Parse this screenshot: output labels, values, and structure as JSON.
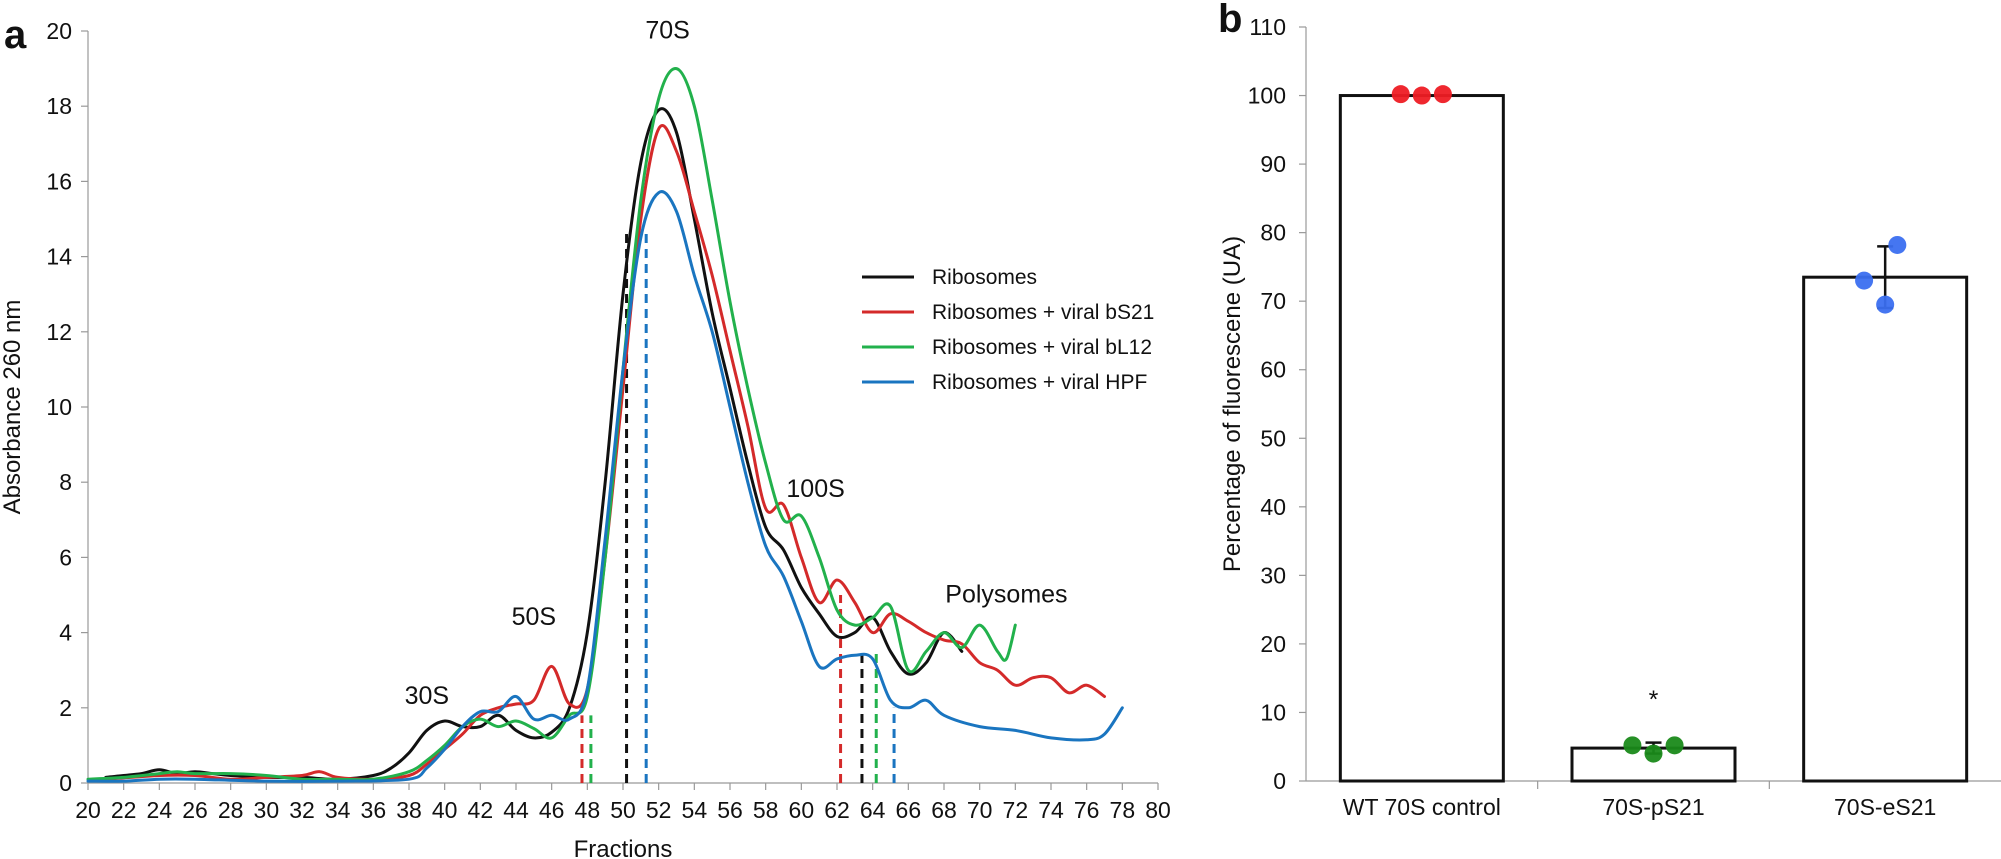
{
  "chart_data": [
    {
      "panel": "a",
      "type": "line",
      "title": "",
      "xlabel": "Fractions",
      "ylabel": "Absorbance 260 nm",
      "xlim": [
        20,
        80
      ],
      "ylim": [
        0,
        20
      ],
      "xticks": [
        20,
        22,
        24,
        26,
        28,
        30,
        32,
        34,
        36,
        38,
        40,
        42,
        44,
        46,
        48,
        50,
        52,
        54,
        56,
        58,
        60,
        62,
        64,
        66,
        68,
        70,
        72,
        74,
        76,
        78,
        80
      ],
      "yticks": [
        0,
        2,
        4,
        6,
        8,
        10,
        12,
        14,
        16,
        18,
        20
      ],
      "grid": false,
      "legend_position": "middle-right",
      "annotations": [
        {
          "text": "70S",
          "x": 52.5,
          "y": 19.8
        },
        {
          "text": "30S",
          "x": 39.0,
          "y": 2.1
        },
        {
          "text": "50S",
          "x": 45.0,
          "y": 4.2
        },
        {
          "text": "100S",
          "x": 60.8,
          "y": 7.6
        },
        {
          "text": "Polysomes",
          "x": 71.5,
          "y": 4.8
        }
      ],
      "series": [
        {
          "name": "Ribosomes",
          "color": "#111111",
          "points": [
            [
              21,
              0.15
            ],
            [
              22,
              0.2
            ],
            [
              23,
              0.25
            ],
            [
              24,
              0.35
            ],
            [
              25,
              0.25
            ],
            [
              26,
              0.3
            ],
            [
              27,
              0.25
            ],
            [
              28,
              0.2
            ],
            [
              30,
              0.15
            ],
            [
              32,
              0.15
            ],
            [
              34,
              0.1
            ],
            [
              36,
              0.2
            ],
            [
              37,
              0.4
            ],
            [
              38,
              0.8
            ],
            [
              39,
              1.4
            ],
            [
              40,
              1.65
            ],
            [
              41,
              1.5
            ],
            [
              42,
              1.5
            ],
            [
              43,
              1.8
            ],
            [
              44,
              1.4
            ],
            [
              45,
              1.2
            ],
            [
              46,
              1.35
            ],
            [
              47,
              2.0
            ],
            [
              48,
              4.0
            ],
            [
              49,
              8.0
            ],
            [
              50,
              13.0
            ],
            [
              51,
              16.5
            ],
            [
              52,
              17.9
            ],
            [
              53,
              17.3
            ],
            [
              54,
              15.0
            ],
            [
              55,
              12.5
            ],
            [
              56,
              10.5
            ],
            [
              57,
              8.5
            ],
            [
              58,
              6.8
            ],
            [
              59,
              6.2
            ],
            [
              60,
              5.2
            ],
            [
              61,
              4.5
            ],
            [
              62,
              3.9
            ],
            [
              63,
              4.0
            ],
            [
              64,
              4.4
            ],
            [
              65,
              3.5
            ],
            [
              66,
              2.9
            ],
            [
              67,
              3.2
            ],
            [
              68,
              4.0
            ],
            [
              69,
              3.5
            ]
          ]
        },
        {
          "name": "Ribosomes + viral bS21",
          "color": "#d42a2a",
          "points": [
            [
              21,
              0.1
            ],
            [
              24,
              0.2
            ],
            [
              26,
              0.2
            ],
            [
              28,
              0.1
            ],
            [
              30,
              0.15
            ],
            [
              32,
              0.2
            ],
            [
              33,
              0.3
            ],
            [
              34,
              0.15
            ],
            [
              36,
              0.1
            ],
            [
              38,
              0.2
            ],
            [
              39,
              0.5
            ],
            [
              40,
              0.9
            ],
            [
              41,
              1.3
            ],
            [
              42,
              1.8
            ],
            [
              43,
              2.0
            ],
            [
              44,
              2.1
            ],
            [
              45,
              2.2
            ],
            [
              46,
              3.1
            ],
            [
              47,
              2.1
            ],
            [
              48,
              2.5
            ],
            [
              49,
              6.0
            ],
            [
              50,
              10.5
            ],
            [
              51,
              15.0
            ],
            [
              52,
              17.4
            ],
            [
              53,
              16.8
            ],
            [
              54,
              15.2
            ],
            [
              55,
              13.5
            ],
            [
              56,
              11.5
            ],
            [
              57,
              9.5
            ],
            [
              58,
              7.3
            ],
            [
              59,
              7.4
            ],
            [
              60,
              6.0
            ],
            [
              61,
              4.8
            ],
            [
              62,
              5.4
            ],
            [
              63,
              4.8
            ],
            [
              64,
              4.0
            ],
            [
              65,
              4.5
            ],
            [
              66,
              4.3
            ],
            [
              67,
              4.0
            ],
            [
              68,
              3.8
            ],
            [
              69,
              3.7
            ],
            [
              70,
              3.2
            ],
            [
              71,
              3.0
            ],
            [
              72,
              2.6
            ],
            [
              73,
              2.8
            ],
            [
              74,
              2.8
            ],
            [
              75,
              2.4
            ],
            [
              76,
              2.6
            ],
            [
              77,
              2.3
            ]
          ]
        },
        {
          "name": "Ribosomes + viral bL12",
          "color": "#22b14c",
          "points": [
            [
              20,
              0.1
            ],
            [
              22,
              0.15
            ],
            [
              24,
              0.25
            ],
            [
              25,
              0.3
            ],
            [
              26,
              0.25
            ],
            [
              28,
              0.25
            ],
            [
              30,
              0.2
            ],
            [
              32,
              0.1
            ],
            [
              34,
              0.1
            ],
            [
              36,
              0.1
            ],
            [
              38,
              0.3
            ],
            [
              39,
              0.6
            ],
            [
              40,
              1.0
            ],
            [
              41,
              1.5
            ],
            [
              42,
              1.7
            ],
            [
              43,
              1.5
            ],
            [
              44,
              1.65
            ],
            [
              45,
              1.45
            ],
            [
              46,
              1.2
            ],
            [
              47,
              1.8
            ],
            [
              48,
              2.3
            ],
            [
              49,
              6.0
            ],
            [
              50,
              11.0
            ],
            [
              51,
              15.5
            ],
            [
              52,
              18.2
            ],
            [
              53,
              19.0
            ],
            [
              54,
              18.0
            ],
            [
              55,
              15.5
            ],
            [
              56,
              12.8
            ],
            [
              57,
              10.5
            ],
            [
              58,
              8.5
            ],
            [
              59,
              7.0
            ],
            [
              60,
              7.1
            ],
            [
              61,
              6.0
            ],
            [
              62,
              4.6
            ],
            [
              63,
              4.2
            ],
            [
              64,
              4.4
            ],
            [
              65,
              4.7
            ],
            [
              66,
              3.0
            ],
            [
              67,
              3.5
            ],
            [
              68,
              4.0
            ],
            [
              69,
              3.6
            ],
            [
              70,
              4.2
            ],
            [
              71,
              3.5
            ],
            [
              71.5,
              3.3
            ],
            [
              72,
              4.2
            ]
          ]
        },
        {
          "name": "Ribosomes + viral HPF",
          "color": "#1a75c0",
          "points": [
            [
              20,
              0.05
            ],
            [
              22,
              0.05
            ],
            [
              24,
              0.1
            ],
            [
              26,
              0.1
            ],
            [
              30,
              0.05
            ],
            [
              34,
              0.05
            ],
            [
              38,
              0.1
            ],
            [
              39,
              0.4
            ],
            [
              40,
              0.9
            ],
            [
              41,
              1.5
            ],
            [
              42,
              1.9
            ],
            [
              43,
              1.9
            ],
            [
              44,
              2.3
            ],
            [
              45,
              1.7
            ],
            [
              46,
              1.8
            ],
            [
              47,
              1.7
            ],
            [
              48,
              2.5
            ],
            [
              49,
              6.5
            ],
            [
              50,
              11.0
            ],
            [
              51,
              14.5
            ],
            [
              52,
              15.7
            ],
            [
              53,
              15.2
            ],
            [
              54,
              13.5
            ],
            [
              55,
              12.0
            ],
            [
              56,
              10.0
            ],
            [
              57,
              8.0
            ],
            [
              58,
              6.3
            ],
            [
              59,
              5.5
            ],
            [
              60,
              4.3
            ],
            [
              61,
              3.1
            ],
            [
              62,
              3.3
            ],
            [
              63,
              3.4
            ],
            [
              64,
              3.3
            ],
            [
              65,
              2.2
            ],
            [
              66,
              2.0
            ],
            [
              67,
              2.2
            ],
            [
              68,
              1.8
            ],
            [
              70,
              1.5
            ],
            [
              72,
              1.4
            ],
            [
              74,
              1.2
            ],
            [
              76,
              1.15
            ],
            [
              77,
              1.3
            ],
            [
              78,
              2.0
            ]
          ]
        }
      ],
      "fraction_markers": [
        {
          "x": 47.7,
          "top": 1.8,
          "color": "#d42a2a"
        },
        {
          "x": 48.2,
          "top": 1.8,
          "color": "#22b14c"
        },
        {
          "x": 50.2,
          "top": 14.7,
          "color": "#111111"
        },
        {
          "x": 51.3,
          "top": 14.7,
          "color": "#1a75c0"
        },
        {
          "x": 62.2,
          "top": 5.0,
          "color": "#d42a2a"
        },
        {
          "x": 63.4,
          "top": 3.5,
          "color": "#111111"
        },
        {
          "x": 64.2,
          "top": 3.5,
          "color": "#22b14c"
        },
        {
          "x": 65.2,
          "top": 2.0,
          "color": "#1a75c0"
        }
      ]
    },
    {
      "panel": "b",
      "type": "bar",
      "title": "",
      "xlabel": "",
      "ylabel": "Percentage of fluorescene (UA)",
      "categories": [
        "WT 70S control",
        "70S-pS21",
        "70S-eS21"
      ],
      "values": [
        100,
        4.8,
        73.5
      ],
      "error": [
        0.3,
        0.8,
        4.5
      ],
      "ylim": [
        0,
        110
      ],
      "yticks": [
        0,
        10,
        20,
        30,
        40,
        50,
        60,
        70,
        80,
        90,
        100,
        110
      ],
      "grid": false,
      "significance": [
        {
          "category": "70S-pS21",
          "text": "*"
        }
      ],
      "replicates": [
        {
          "category": "WT 70S control",
          "color": "#ee1c24",
          "values": [
            100.2,
            100.0,
            100.2
          ],
          "offsets": [
            -0.26,
            0,
            0.26
          ]
        },
        {
          "category": "70S-pS21",
          "color": "#1a8a1a",
          "values": [
            5.2,
            4.0,
            5.2
          ],
          "offsets": [
            -0.26,
            0,
            0.26
          ]
        },
        {
          "category": "70S-eS21",
          "color": "#3b6ff0",
          "values": [
            73.0,
            69.5,
            78.2
          ],
          "offsets": [
            -0.26,
            0,
            0.15
          ]
        }
      ]
    }
  ],
  "panel_labels": {
    "a": "a",
    "b": "b"
  }
}
